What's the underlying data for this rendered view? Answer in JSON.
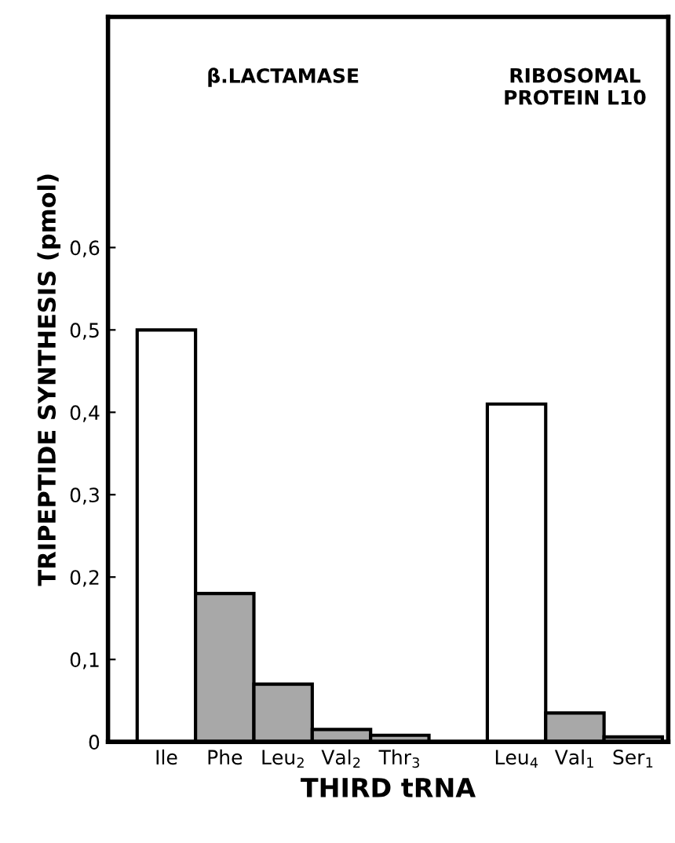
{
  "chart_data": {
    "type": "bar",
    "xlabel": "THIRD tRNA",
    "ylabel": "TRIPEPTIDE SYNTHESIS (pmol)",
    "categories": [
      "Ile",
      "Phe",
      "Leu$_{2}$",
      "Val$_{2}$",
      "Thr$_{3}$",
      null,
      "Leu$_{4}$",
      "Val$_{1}$",
      "Ser$_{1}$"
    ],
    "values": [
      0.5,
      0.18,
      0.07,
      0.015,
      0.008,
      null,
      0.41,
      0.035,
      0.006
    ],
    "colors": [
      "#ffffff",
      "#a8a8a8",
      "#a8a8a8",
      "#a8a8a8",
      "#a8a8a8",
      "#ffffff",
      "#ffffff",
      "#a8a8a8",
      "#a8a8a8"
    ],
    "ylim": [
      0,
      0.88
    ],
    "yticks": [
      0,
      {
        "value": 0.1,
        "label": "0,1"
      },
      {
        "value": 0.2,
        "label": "0,2"
      },
      {
        "value": 0.3,
        "label": "0,3"
      },
      {
        "value": 0.4,
        "label": "0,4"
      },
      {
        "value": 0.5,
        "label": "0,5"
      },
      {
        "value": 0.6,
        "label": "0,6"
      }
    ],
    "annotations": [
      "β.LACTAMASE",
      "RIBOSOMAL\nPROTEIN L10"
    ],
    "grid": false
  }
}
